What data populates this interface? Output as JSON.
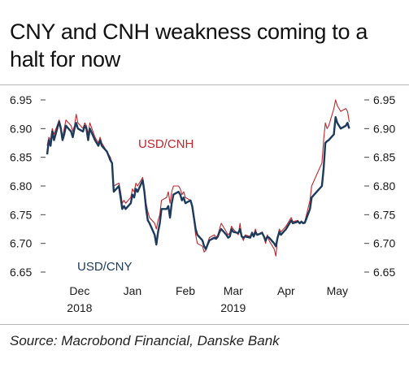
{
  "title": "CNY and CNH weakness coming to a halt for now",
  "source": "Source: Macrobond Financial, Danske Bank",
  "colors": {
    "cny": "#1b3a5c",
    "cnh": "#c0262b",
    "axis": "#444444"
  },
  "chart_data": {
    "type": "line",
    "ylim": [
      6.65,
      6.95
    ],
    "yticks": [
      {
        "value": 6.95,
        "label": "6.95"
      },
      {
        "value": 6.9,
        "label": "6.90"
      },
      {
        "value": 6.85,
        "label": "6.85"
      },
      {
        "value": 6.8,
        "label": "6.80"
      },
      {
        "value": 6.75,
        "label": "6.75"
      },
      {
        "value": 6.7,
        "label": "6.70"
      },
      {
        "value": 6.65,
        "label": "6.65"
      }
    ],
    "xticks": [
      {
        "date": "2018-12-15",
        "label": "Dec",
        "year": "2018"
      },
      {
        "date": "2019-01-15",
        "label": "Jan",
        "year": ""
      },
      {
        "date": "2019-02-15",
        "label": "Feb",
        "year": ""
      },
      {
        "date": "2019-03-15",
        "label": "Mar",
        "year": "2019"
      },
      {
        "date": "2019-04-15",
        "label": "Apr",
        "year": ""
      },
      {
        "date": "2019-05-15",
        "label": "May",
        "year": ""
      }
    ],
    "xlim": [
      "2018-11-26",
      "2019-05-27"
    ],
    "series": [
      {
        "name": "USD/CNY",
        "key": "cny",
        "points": [
          [
            "2018-11-26",
            6.855
          ],
          [
            "2018-11-27",
            6.88
          ],
          [
            "2018-11-28",
            6.87
          ],
          [
            "2018-11-29",
            6.895
          ],
          [
            "2018-11-30",
            6.88
          ],
          [
            "2018-12-03",
            6.912
          ],
          [
            "2018-12-04",
            6.9
          ],
          [
            "2018-12-05",
            6.88
          ],
          [
            "2018-12-06",
            6.89
          ],
          [
            "2018-12-07",
            6.905
          ],
          [
            "2018-12-10",
            6.895
          ],
          [
            "2018-12-11",
            6.885
          ],
          [
            "2018-12-12",
            6.9
          ],
          [
            "2018-12-13",
            6.91
          ],
          [
            "2018-12-14",
            6.9
          ],
          [
            "2018-12-17",
            6.895
          ],
          [
            "2018-12-18",
            6.905
          ],
          [
            "2018-12-19",
            6.9
          ],
          [
            "2018-12-20",
            6.88
          ],
          [
            "2018-12-21",
            6.9
          ],
          [
            "2018-12-24",
            6.88
          ],
          [
            "2018-12-25",
            6.875
          ],
          [
            "2018-12-26",
            6.87
          ],
          [
            "2018-12-27",
            6.88
          ],
          [
            "2018-12-28",
            6.87
          ],
          [
            "2018-12-31",
            6.86
          ],
          [
            "2019-01-02",
            6.845
          ],
          [
            "2019-01-03",
            6.84
          ],
          [
            "2019-01-04",
            6.79
          ],
          [
            "2019-01-07",
            6.8
          ],
          [
            "2019-01-08",
            6.78
          ],
          [
            "2019-01-09",
            6.76
          ],
          [
            "2019-01-10",
            6.765
          ],
          [
            "2019-01-11",
            6.76
          ],
          [
            "2019-01-14",
            6.77
          ],
          [
            "2019-01-15",
            6.785
          ],
          [
            "2019-01-16",
            6.78
          ],
          [
            "2019-01-17",
            6.795
          ],
          [
            "2019-01-18",
            6.79
          ],
          [
            "2019-01-21",
            6.81
          ],
          [
            "2019-01-22",
            6.79
          ],
          [
            "2019-01-23",
            6.76
          ],
          [
            "2019-01-24",
            6.74
          ],
          [
            "2019-01-25",
            6.735
          ],
          [
            "2019-01-28",
            6.715
          ],
          [
            "2019-01-29",
            6.698
          ],
          [
            "2019-01-30",
            6.72
          ],
          [
            "2019-01-31",
            6.735
          ],
          [
            "2019-02-01",
            6.76
          ],
          [
            "2019-02-04",
            6.76
          ],
          [
            "2019-02-05",
            6.765
          ],
          [
            "2019-02-06",
            6.745
          ],
          [
            "2019-02-07",
            6.77
          ],
          [
            "2019-02-08",
            6.785
          ],
          [
            "2019-02-11",
            6.79
          ],
          [
            "2019-02-12",
            6.785
          ],
          [
            "2019-02-13",
            6.775
          ],
          [
            "2019-02-14",
            6.78
          ],
          [
            "2019-02-15",
            6.77
          ],
          [
            "2019-02-18",
            6.775
          ],
          [
            "2019-02-19",
            6.765
          ],
          [
            "2019-02-20",
            6.745
          ],
          [
            "2019-02-21",
            6.725
          ],
          [
            "2019-02-22",
            6.715
          ],
          [
            "2019-02-25",
            6.705
          ],
          [
            "2019-02-26",
            6.695
          ],
          [
            "2019-02-27",
            6.69
          ],
          [
            "2019-02-28",
            6.698
          ],
          [
            "2019-03-01",
            6.705
          ],
          [
            "2019-03-04",
            6.71
          ],
          [
            "2019-03-05",
            6.708
          ],
          [
            "2019-03-06",
            6.712
          ],
          [
            "2019-03-07",
            6.72
          ],
          [
            "2019-03-08",
            6.725
          ],
          [
            "2019-03-11",
            6.715
          ],
          [
            "2019-03-12",
            6.71
          ],
          [
            "2019-03-13",
            6.712
          ],
          [
            "2019-03-14",
            6.725
          ],
          [
            "2019-03-15",
            6.72
          ],
          [
            "2019-03-18",
            6.718
          ],
          [
            "2019-03-19",
            6.725
          ],
          [
            "2019-03-20",
            6.712
          ],
          [
            "2019-03-21",
            6.71
          ],
          [
            "2019-03-22",
            6.712
          ],
          [
            "2019-03-25",
            6.71
          ],
          [
            "2019-03-26",
            6.718
          ],
          [
            "2019-03-27",
            6.712
          ],
          [
            "2019-03-28",
            6.72
          ],
          [
            "2019-03-29",
            6.715
          ],
          [
            "2019-04-01",
            6.718
          ],
          [
            "2019-04-02",
            6.712
          ],
          [
            "2019-04-03",
            6.705
          ],
          [
            "2019-04-04",
            6.712
          ],
          [
            "2019-04-05",
            6.71
          ],
          [
            "2019-04-08",
            6.7
          ],
          [
            "2019-04-09",
            6.695
          ],
          [
            "2019-04-10",
            6.71
          ],
          [
            "2019-04-11",
            6.72
          ],
          [
            "2019-04-12",
            6.715
          ],
          [
            "2019-04-15",
            6.725
          ],
          [
            "2019-04-16",
            6.73
          ],
          [
            "2019-04-17",
            6.735
          ],
          [
            "2019-04-18",
            6.74
          ],
          [
            "2019-04-19",
            6.735
          ],
          [
            "2019-04-22",
            6.738
          ],
          [
            "2019-04-23",
            6.735
          ],
          [
            "2019-04-24",
            6.738
          ],
          [
            "2019-04-25",
            6.735
          ],
          [
            "2019-04-26",
            6.736
          ],
          [
            "2019-04-29",
            6.76
          ],
          [
            "2019-04-30",
            6.78
          ],
          [
            "2019-05-06",
            6.8
          ],
          [
            "2019-05-07",
            6.83
          ],
          [
            "2019-05-08",
            6.875
          ],
          [
            "2019-05-09",
            6.878
          ],
          [
            "2019-05-10",
            6.88
          ],
          [
            "2019-05-13",
            6.89
          ],
          [
            "2019-05-14",
            6.92
          ],
          [
            "2019-05-15",
            6.91
          ],
          [
            "2019-05-16",
            6.905
          ],
          [
            "2019-05-17",
            6.9
          ],
          [
            "2019-05-20",
            6.905
          ],
          [
            "2019-05-21",
            6.91
          ],
          [
            "2019-05-22",
            6.9
          ]
        ]
      },
      {
        "name": "USD/CNH",
        "key": "cnh",
        "points": [
          [
            "2018-11-26",
            6.87
          ],
          [
            "2018-11-27",
            6.885
          ],
          [
            "2018-11-28",
            6.88
          ],
          [
            "2018-11-29",
            6.9
          ],
          [
            "2018-11-30",
            6.89
          ],
          [
            "2018-12-03",
            6.915
          ],
          [
            "2018-12-04",
            6.905
          ],
          [
            "2018-12-05",
            6.885
          ],
          [
            "2018-12-06",
            6.9
          ],
          [
            "2018-12-07",
            6.915
          ],
          [
            "2018-12-10",
            6.905
          ],
          [
            "2018-12-11",
            6.895
          ],
          [
            "2018-12-12",
            6.905
          ],
          [
            "2018-12-13",
            6.925
          ],
          [
            "2018-12-14",
            6.91
          ],
          [
            "2018-12-17",
            6.9
          ],
          [
            "2018-12-18",
            6.91
          ],
          [
            "2018-12-19",
            6.905
          ],
          [
            "2018-12-20",
            6.89
          ],
          [
            "2018-12-21",
            6.91
          ],
          [
            "2018-12-24",
            6.885
          ],
          [
            "2018-12-25",
            6.88
          ],
          [
            "2018-12-26",
            6.875
          ],
          [
            "2018-12-27",
            6.885
          ],
          [
            "2018-12-28",
            6.875
          ],
          [
            "2018-12-31",
            6.86
          ],
          [
            "2019-01-02",
            6.85
          ],
          [
            "2019-01-03",
            6.84
          ],
          [
            "2019-01-04",
            6.8
          ],
          [
            "2019-01-07",
            6.805
          ],
          [
            "2019-01-08",
            6.79
          ],
          [
            "2019-01-09",
            6.77
          ],
          [
            "2019-01-10",
            6.775
          ],
          [
            "2019-01-11",
            6.77
          ],
          [
            "2019-01-14",
            6.78
          ],
          [
            "2019-01-15",
            6.795
          ],
          [
            "2019-01-16",
            6.79
          ],
          [
            "2019-01-17",
            6.805
          ],
          [
            "2019-01-18",
            6.8
          ],
          [
            "2019-01-21",
            6.815
          ],
          [
            "2019-01-22",
            6.795
          ],
          [
            "2019-01-23",
            6.77
          ],
          [
            "2019-01-24",
            6.755
          ],
          [
            "2019-01-25",
            6.745
          ],
          [
            "2019-01-28",
            6.735
          ],
          [
            "2019-01-29",
            6.725
          ],
          [
            "2019-01-30",
            6.74
          ],
          [
            "2019-01-31",
            6.75
          ],
          [
            "2019-02-01",
            6.775
          ],
          [
            "2019-02-04",
            6.78
          ],
          [
            "2019-02-05",
            6.79
          ],
          [
            "2019-02-06",
            6.77
          ],
          [
            "2019-02-07",
            6.79
          ],
          [
            "2019-02-08",
            6.8
          ],
          [
            "2019-02-11",
            6.8
          ],
          [
            "2019-02-12",
            6.795
          ],
          [
            "2019-02-13",
            6.785
          ],
          [
            "2019-02-14",
            6.79
          ],
          [
            "2019-02-15",
            6.78
          ],
          [
            "2019-02-18",
            6.775
          ],
          [
            "2019-02-19",
            6.76
          ],
          [
            "2019-02-20",
            6.74
          ],
          [
            "2019-02-21",
            6.715
          ],
          [
            "2019-02-22",
            6.7
          ],
          [
            "2019-02-25",
            6.695
          ],
          [
            "2019-02-26",
            6.685
          ],
          [
            "2019-02-27",
            6.688
          ],
          [
            "2019-02-28",
            6.7
          ],
          [
            "2019-03-01",
            6.71
          ],
          [
            "2019-03-04",
            6.715
          ],
          [
            "2019-03-05",
            6.71
          ],
          [
            "2019-03-06",
            6.715
          ],
          [
            "2019-03-07",
            6.725
          ],
          [
            "2019-03-08",
            6.735
          ],
          [
            "2019-03-11",
            6.72
          ],
          [
            "2019-03-12",
            6.715
          ],
          [
            "2019-03-13",
            6.718
          ],
          [
            "2019-03-14",
            6.73
          ],
          [
            "2019-03-15",
            6.725
          ],
          [
            "2019-03-18",
            6.715
          ],
          [
            "2019-03-19",
            6.735
          ],
          [
            "2019-03-20",
            6.712
          ],
          [
            "2019-03-21",
            6.705
          ],
          [
            "2019-03-22",
            6.715
          ],
          [
            "2019-03-25",
            6.712
          ],
          [
            "2019-03-26",
            6.72
          ],
          [
            "2019-03-27",
            6.715
          ],
          [
            "2019-03-28",
            6.725
          ],
          [
            "2019-03-29",
            6.715
          ],
          [
            "2019-04-01",
            6.72
          ],
          [
            "2019-04-02",
            6.71
          ],
          [
            "2019-04-03",
            6.7
          ],
          [
            "2019-04-04",
            6.715
          ],
          [
            "2019-04-05",
            6.705
          ],
          [
            "2019-04-08",
            6.69
          ],
          [
            "2019-04-09",
            6.678
          ],
          [
            "2019-04-10",
            6.71
          ],
          [
            "2019-04-11",
            6.725
          ],
          [
            "2019-04-12",
            6.72
          ],
          [
            "2019-04-15",
            6.73
          ],
          [
            "2019-04-16",
            6.735
          ],
          [
            "2019-04-17",
            6.74
          ],
          [
            "2019-04-18",
            6.745
          ],
          [
            "2019-04-19",
            6.738
          ],
          [
            "2019-04-22",
            6.74
          ],
          [
            "2019-04-23",
            6.735
          ],
          [
            "2019-04-24",
            6.738
          ],
          [
            "2019-04-25",
            6.736
          ],
          [
            "2019-04-26",
            6.738
          ],
          [
            "2019-04-29",
            6.775
          ],
          [
            "2019-04-30",
            6.8
          ],
          [
            "2019-05-06",
            6.84
          ],
          [
            "2019-05-07",
            6.88
          ],
          [
            "2019-05-08",
            6.91
          ],
          [
            "2019-05-09",
            6.9
          ],
          [
            "2019-05-10",
            6.905
          ],
          [
            "2019-05-13",
            6.935
          ],
          [
            "2019-05-14",
            6.95
          ],
          [
            "2019-05-15",
            6.94
          ],
          [
            "2019-05-16",
            6.935
          ],
          [
            "2019-05-17",
            6.93
          ],
          [
            "2019-05-20",
            6.935
          ],
          [
            "2019-05-21",
            6.93
          ],
          [
            "2019-05-22",
            6.912
          ]
        ]
      }
    ]
  }
}
